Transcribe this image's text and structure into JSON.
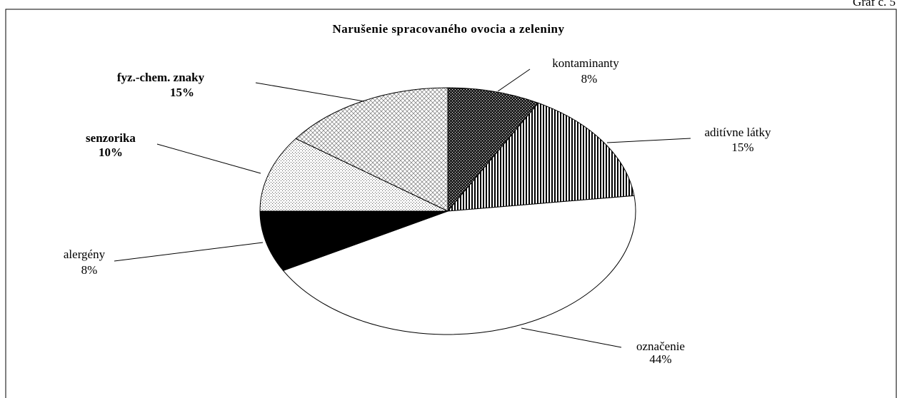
{
  "chart_data": {
    "type": "pie",
    "corner_label": "Graf č. 5",
    "title": "Narušenie spracovaného ovocia a zeleniny",
    "categories": [
      "kontaminanty",
      "aditívne látky",
      "označenie",
      "alergény",
      "senzorika",
      "fyz.-chem. znaky"
    ],
    "values": [
      8,
      15,
      44,
      8,
      10,
      15
    ],
    "value_labels": [
      "8%",
      "15%",
      "44%",
      "8%",
      "10%",
      "15%"
    ]
  }
}
